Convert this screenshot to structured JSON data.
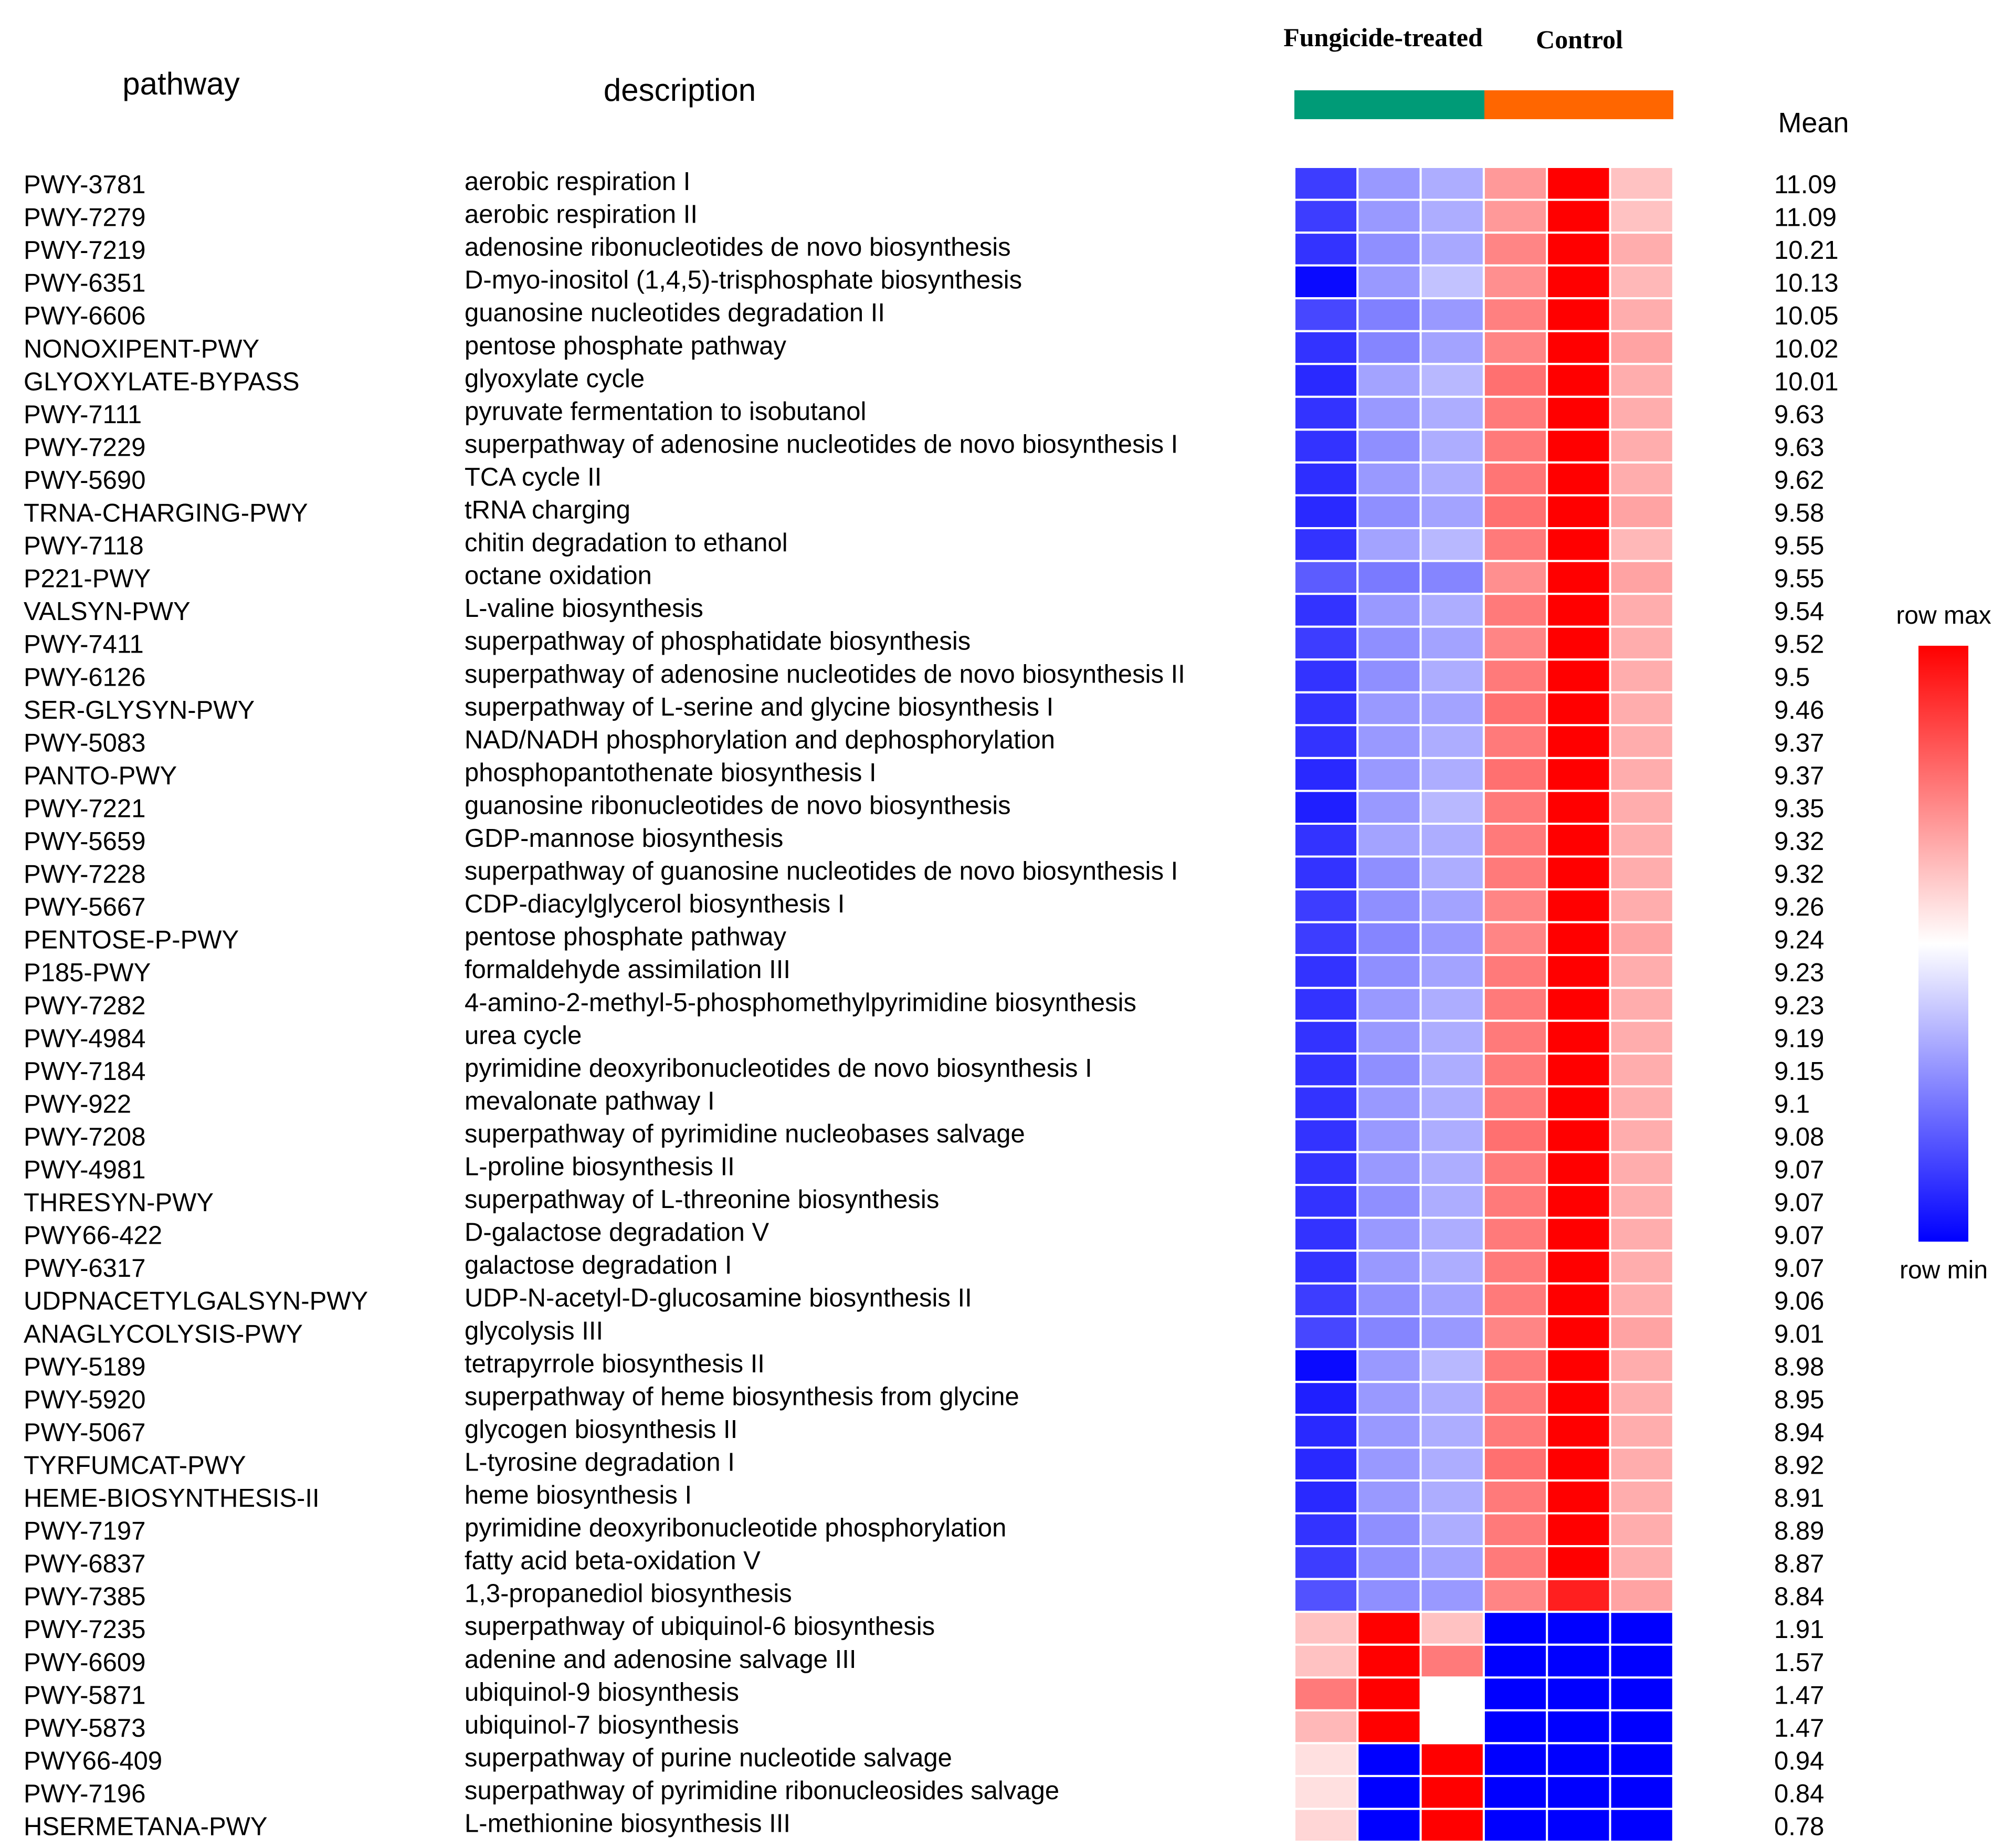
{
  "chart_data": {
    "type": "heatmap",
    "headers": {
      "pathway": "pathway",
      "description": "description",
      "mean": "Mean"
    },
    "groups": [
      {
        "name": "Fungicide-treated",
        "color": "#009b77",
        "columns": 3
      },
      {
        "name": "Control",
        "color": "#ff6600",
        "columns": 3
      }
    ],
    "legend": {
      "max_label": "row max",
      "min_label": "row min",
      "position": "right"
    },
    "color_scale": {
      "min": "#0000ff",
      "mid": "#ffffff",
      "max": "#ff0000"
    },
    "rows": [
      {
        "pathway": "PWY-3781",
        "description": "aerobic respiration I",
        "mean": "11.09",
        "values": [
          0.12,
          0.3,
          0.34,
          0.7,
          1.0,
          0.62
        ]
      },
      {
        "pathway": "PWY-7279",
        "description": "aerobic respiration II",
        "mean": "11.09",
        "values": [
          0.12,
          0.3,
          0.34,
          0.7,
          1.0,
          0.62
        ]
      },
      {
        "pathway": "PWY-7219",
        "description": "adenosine ribonucleotides de novo biosynthesis",
        "mean": "10.21",
        "values": [
          0.1,
          0.28,
          0.33,
          0.74,
          1.0,
          0.66
        ]
      },
      {
        "pathway": "PWY-6351",
        "description": "D-myo-inositol (1,4,5)-trisphosphate biosynthesis",
        "mean": "10.13",
        "values": [
          0.02,
          0.3,
          0.38,
          0.72,
          1.0,
          0.64
        ]
      },
      {
        "pathway": "PWY-6606",
        "description": "guanosine nucleotides degradation II",
        "mean": "10.05",
        "values": [
          0.14,
          0.25,
          0.3,
          0.75,
          1.0,
          0.66
        ]
      },
      {
        "pathway": "NONOXIPENT-PWY",
        "description": "pentose phosphate pathway",
        "mean": "10.02",
        "values": [
          0.1,
          0.26,
          0.32,
          0.74,
          1.0,
          0.68
        ]
      },
      {
        "pathway": "GLYOXYLATE-BYPASS",
        "description": "glyoxylate cycle",
        "mean": "10.01",
        "values": [
          0.08,
          0.32,
          0.36,
          0.78,
          1.0,
          0.66
        ]
      },
      {
        "pathway": "PWY-7111",
        "description": "pyruvate fermentation to isobutanol",
        "mean": "9.63",
        "values": [
          0.1,
          0.3,
          0.34,
          0.76,
          1.0,
          0.66
        ]
      },
      {
        "pathway": "PWY-7229",
        "description": "superpathway of adenosine nucleotides de novo biosynthesis I",
        "mean": "9.63",
        "values": [
          0.1,
          0.28,
          0.34,
          0.76,
          1.0,
          0.66
        ]
      },
      {
        "pathway": "PWY-5690",
        "description": "TCA cycle II",
        "mean": "9.62",
        "values": [
          0.09,
          0.3,
          0.34,
          0.77,
          1.0,
          0.66
        ]
      },
      {
        "pathway": "TRNA-CHARGING-PWY",
        "description": "tRNA charging",
        "mean": "9.58",
        "values": [
          0.08,
          0.28,
          0.32,
          0.78,
          1.0,
          0.68
        ]
      },
      {
        "pathway": "PWY-7118",
        "description": "chitin degradation to ethanol",
        "mean": "9.55",
        "values": [
          0.1,
          0.32,
          0.36,
          0.76,
          1.0,
          0.64
        ]
      },
      {
        "pathway": "P221-PWY",
        "description": "octane oxidation",
        "mean": "9.55",
        "values": [
          0.18,
          0.24,
          0.26,
          0.72,
          1.0,
          0.68
        ]
      },
      {
        "pathway": "VALSYN-PWY",
        "description": "L-valine biosynthesis",
        "mean": "9.54",
        "values": [
          0.1,
          0.3,
          0.34,
          0.76,
          1.0,
          0.66
        ]
      },
      {
        "pathway": "PWY-7411",
        "description": "superpathway of phosphatidate biosynthesis",
        "mean": "9.52",
        "values": [
          0.12,
          0.28,
          0.32,
          0.74,
          1.0,
          0.66
        ]
      },
      {
        "pathway": "PWY-6126",
        "description": "superpathway of adenosine nucleotides de novo biosynthesis II",
        "mean": "9.5",
        "values": [
          0.1,
          0.28,
          0.34,
          0.76,
          1.0,
          0.66
        ]
      },
      {
        "pathway": "SER-GLYSYN-PWY",
        "description": "superpathway of L-serine and glycine biosynthesis I",
        "mean": "9.46",
        "values": [
          0.1,
          0.3,
          0.32,
          0.78,
          1.0,
          0.66
        ]
      },
      {
        "pathway": "PWY-5083",
        "description": "NAD/NADH phosphorylation and dephosphorylation",
        "mean": "9.37",
        "values": [
          0.1,
          0.3,
          0.34,
          0.76,
          1.0,
          0.66
        ]
      },
      {
        "pathway": "PANTO-PWY",
        "description": "phosphopantothenate biosynthesis I",
        "mean": "9.37",
        "values": [
          0.08,
          0.3,
          0.34,
          0.78,
          1.0,
          0.66
        ]
      },
      {
        "pathway": "PWY-7221",
        "description": "guanosine ribonucleotides de novo biosynthesis",
        "mean": "9.35",
        "values": [
          0.06,
          0.3,
          0.36,
          0.76,
          1.0,
          0.66
        ]
      },
      {
        "pathway": "PWY-5659",
        "description": "GDP-mannose biosynthesis",
        "mean": "9.32",
        "values": [
          0.1,
          0.32,
          0.34,
          0.76,
          1.0,
          0.66
        ]
      },
      {
        "pathway": "PWY-7228",
        "description": "superpathway of guanosine nucleotides de novo biosynthesis I",
        "mean": "9.32",
        "values": [
          0.1,
          0.28,
          0.34,
          0.76,
          1.0,
          0.66
        ]
      },
      {
        "pathway": "PWY-5667",
        "description": "CDP-diacylglycerol biosynthesis I",
        "mean": "9.26",
        "values": [
          0.12,
          0.28,
          0.32,
          0.74,
          1.0,
          0.66
        ]
      },
      {
        "pathway": "PENTOSE-P-PWY",
        "description": "pentose phosphate pathway",
        "mean": "9.24",
        "values": [
          0.12,
          0.26,
          0.3,
          0.74,
          1.0,
          0.68
        ]
      },
      {
        "pathway": "P185-PWY",
        "description": "formaldehyde assimilation III",
        "mean": "9.23",
        "values": [
          0.1,
          0.28,
          0.32,
          0.76,
          1.0,
          0.66
        ]
      },
      {
        "pathway": "PWY-7282",
        "description": "4-amino-2-methyl-5-phosphomethylpyrimidine biosynthesis",
        "mean": "9.23",
        "values": [
          0.1,
          0.3,
          0.34,
          0.76,
          1.0,
          0.66
        ]
      },
      {
        "pathway": "PWY-4984",
        "description": "urea cycle",
        "mean": "9.19",
        "values": [
          0.1,
          0.3,
          0.34,
          0.76,
          1.0,
          0.66
        ]
      },
      {
        "pathway": "PWY-7184",
        "description": "pyrimidine deoxyribonucleotides de novo biosynthesis I",
        "mean": "9.15",
        "values": [
          0.1,
          0.28,
          0.34,
          0.76,
          1.0,
          0.66
        ]
      },
      {
        "pathway": "PWY-922",
        "description": "mevalonate pathway I",
        "mean": "9.1",
        "values": [
          0.1,
          0.3,
          0.34,
          0.76,
          1.0,
          0.66
        ]
      },
      {
        "pathway": "PWY-7208",
        "description": "superpathway of pyrimidine nucleobases salvage",
        "mean": "9.08",
        "values": [
          0.1,
          0.3,
          0.34,
          0.78,
          1.0,
          0.66
        ]
      },
      {
        "pathway": "PWY-4981",
        "description": "L-proline biosynthesis II",
        "mean": "9.07",
        "values": [
          0.1,
          0.3,
          0.34,
          0.76,
          1.0,
          0.66
        ]
      },
      {
        "pathway": "THRESYN-PWY",
        "description": "superpathway of L-threonine biosynthesis",
        "mean": "9.07",
        "values": [
          0.1,
          0.28,
          0.34,
          0.76,
          1.0,
          0.66
        ]
      },
      {
        "pathway": "PWY66-422",
        "description": "D-galactose degradation V",
        "mean": "9.07",
        "values": [
          0.1,
          0.3,
          0.34,
          0.76,
          1.0,
          0.66
        ]
      },
      {
        "pathway": "PWY-6317",
        "description": "galactose degradation I",
        "mean": "9.07",
        "values": [
          0.1,
          0.3,
          0.34,
          0.76,
          1.0,
          0.66
        ]
      },
      {
        "pathway": "UDPNACETYLGALSYN-PWY",
        "description": "UDP-N-acetyl-D-glucosamine biosynthesis II",
        "mean": "9.06",
        "values": [
          0.12,
          0.28,
          0.32,
          0.76,
          1.0,
          0.66
        ]
      },
      {
        "pathway": "ANAGLYCOLYSIS-PWY",
        "description": "glycolysis III",
        "mean": "9.01",
        "values": [
          0.14,
          0.26,
          0.3,
          0.74,
          1.0,
          0.68
        ]
      },
      {
        "pathway": "PWY-5189",
        "description": "tetrapyrrole biosynthesis II",
        "mean": "8.98",
        "values": [
          0.02,
          0.3,
          0.36,
          0.76,
          1.0,
          0.66
        ]
      },
      {
        "pathway": "PWY-5920",
        "description": "superpathway of heme biosynthesis from glycine",
        "mean": "8.95",
        "values": [
          0.06,
          0.3,
          0.34,
          0.76,
          1.0,
          0.66
        ]
      },
      {
        "pathway": "PWY-5067",
        "description": "glycogen biosynthesis II",
        "mean": "8.94",
        "values": [
          0.08,
          0.3,
          0.34,
          0.76,
          1.0,
          0.66
        ]
      },
      {
        "pathway": "TYRFUMCAT-PWY",
        "description": "L-tyrosine degradation I",
        "mean": "8.92",
        "values": [
          0.08,
          0.3,
          0.34,
          0.78,
          1.0,
          0.66
        ]
      },
      {
        "pathway": "HEME-BIOSYNTHESIS-II",
        "description": "heme biosynthesis I",
        "mean": "8.91",
        "values": [
          0.08,
          0.3,
          0.34,
          0.76,
          1.0,
          0.66
        ]
      },
      {
        "pathway": "PWY-7197",
        "description": "pyrimidine deoxyribonucleotide phosphorylation",
        "mean": "8.89",
        "values": [
          0.1,
          0.28,
          0.34,
          0.76,
          1.0,
          0.66
        ]
      },
      {
        "pathway": "PWY-6837",
        "description": "fatty acid beta-oxidation V",
        "mean": "8.87",
        "values": [
          0.12,
          0.28,
          0.32,
          0.76,
          1.0,
          0.66
        ]
      },
      {
        "pathway": "PWY-7385",
        "description": "1,3-propanediol biosynthesis",
        "mean": "8.84",
        "values": [
          0.16,
          0.28,
          0.3,
          0.74,
          0.94,
          0.68
        ]
      },
      {
        "pathway": "PWY-7235",
        "description": "superpathway of ubiquinol-6 biosynthesis",
        "mean": "1.91",
        "values": [
          0.62,
          1.0,
          0.62,
          0.0,
          0.0,
          0.0
        ]
      },
      {
        "pathway": "PWY-6609",
        "description": "adenine and adenosine salvage III",
        "mean": "1.57",
        "values": [
          0.62,
          1.0,
          0.76,
          0.0,
          0.0,
          0.0
        ]
      },
      {
        "pathway": "PWY-5871",
        "description": "ubiquinol-9 biosynthesis",
        "mean": "1.47",
        "values": [
          0.76,
          1.0,
          0.5,
          0.0,
          0.0,
          0.0
        ]
      },
      {
        "pathway": "PWY-5873",
        "description": "ubiquinol-7 biosynthesis",
        "mean": "1.47",
        "values": [
          0.64,
          1.0,
          0.5,
          0.0,
          0.0,
          0.0
        ]
      },
      {
        "pathway": "PWY66-409",
        "description": "superpathway of purine nucleotide salvage",
        "mean": "0.94",
        "values": [
          0.56,
          0.0,
          1.0,
          0.0,
          0.0,
          0.0
        ]
      },
      {
        "pathway": "PWY-7196",
        "description": "superpathway of pyrimidine ribonucleosides salvage",
        "mean": "0.84",
        "values": [
          0.56,
          0.0,
          1.0,
          0.0,
          0.0,
          0.0
        ]
      },
      {
        "pathway": "HSERMETANA-PWY",
        "description": "L-methionine biosynthesis III",
        "mean": "0.78",
        "values": [
          0.58,
          0.0,
          1.0,
          0.0,
          0.0,
          0.0
        ]
      }
    ]
  }
}
